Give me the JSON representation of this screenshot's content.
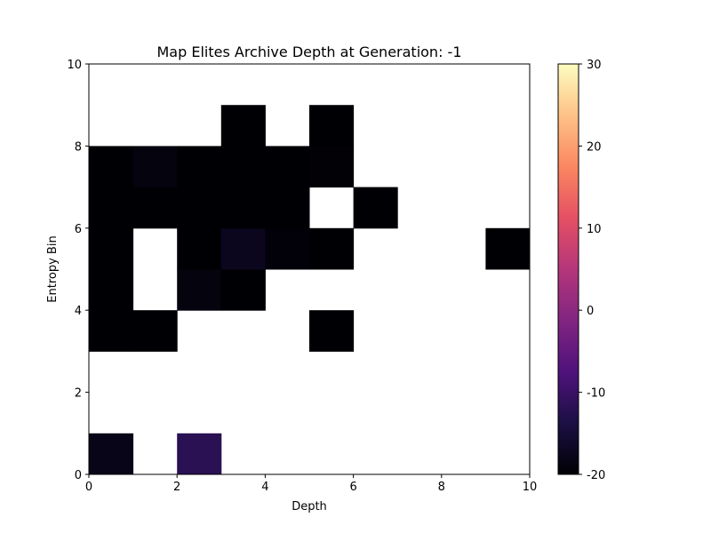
{
  "chart_data": {
    "type": "heatmap",
    "title": "Map Elites Archive Depth at Generation: -1",
    "xlabel": "Depth",
    "ylabel": "Entropy Bin",
    "xlim": [
      0,
      10
    ],
    "ylim": [
      0,
      10
    ],
    "x_ticks": [
      "0",
      "2",
      "4",
      "6",
      "8",
      "10"
    ],
    "y_ticks": [
      "0",
      "2",
      "4",
      "6",
      "8",
      "10"
    ],
    "colormap": "magma",
    "colorbar": {
      "range": [
        -20,
        30
      ],
      "ticks": [
        "-20",
        "-10",
        "0",
        "10",
        "20",
        "30"
      ]
    },
    "empty_cell_color": "#ffffff",
    "cells": [
      {
        "x": 0,
        "y": 0,
        "value": -18
      },
      {
        "x": 2,
        "y": 0,
        "value": -12
      },
      {
        "x": 0,
        "y": 3,
        "value": -20
      },
      {
        "x": 1,
        "y": 3,
        "value": -20
      },
      {
        "x": 5,
        "y": 3,
        "value": -20
      },
      {
        "x": 0,
        "y": 4,
        "value": -20
      },
      {
        "x": 2,
        "y": 4,
        "value": -19
      },
      {
        "x": 3,
        "y": 4,
        "value": -20
      },
      {
        "x": 0,
        "y": 5,
        "value": -20
      },
      {
        "x": 2,
        "y": 5,
        "value": -20
      },
      {
        "x": 3,
        "y": 5,
        "value": -17.5
      },
      {
        "x": 4,
        "y": 5,
        "value": -19.5
      },
      {
        "x": 5,
        "y": 5,
        "value": -20
      },
      {
        "x": 9,
        "y": 5,
        "value": -20
      },
      {
        "x": 0,
        "y": 6,
        "value": -20
      },
      {
        "x": 1,
        "y": 6,
        "value": -20
      },
      {
        "x": 2,
        "y": 6,
        "value": -20
      },
      {
        "x": 3,
        "y": 6,
        "value": -20
      },
      {
        "x": 4,
        "y": 6,
        "value": -20
      },
      {
        "x": 6,
        "y": 6,
        "value": -20
      },
      {
        "x": 0,
        "y": 7,
        "value": -20
      },
      {
        "x": 1,
        "y": 7,
        "value": -19
      },
      {
        "x": 2,
        "y": 7,
        "value": -20
      },
      {
        "x": 3,
        "y": 7,
        "value": -20
      },
      {
        "x": 4,
        "y": 7,
        "value": -20
      },
      {
        "x": 5,
        "y": 7,
        "value": -19.8
      },
      {
        "x": 3,
        "y": 8,
        "value": -20
      },
      {
        "x": 5,
        "y": 8,
        "value": -20
      }
    ]
  }
}
